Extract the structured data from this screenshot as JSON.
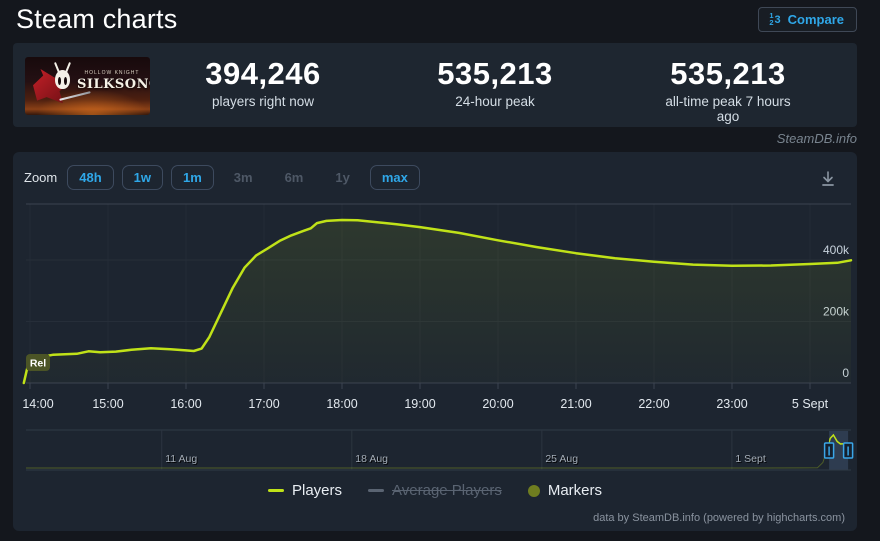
{
  "header": {
    "title": "Steam charts",
    "compare_label": "Compare"
  },
  "game": {
    "title_top": "HOLLOW KNIGHT",
    "title_main": "SILKSONG"
  },
  "stats": [
    {
      "value": "394,246",
      "label": "players right now"
    },
    {
      "value": "535,213",
      "label": "24-hour peak"
    },
    {
      "value": "535,213",
      "label": "all-time peak 7 hours ago"
    }
  ],
  "watermark": "SteamDB.info",
  "toolbar": {
    "zoom_label": "Zoom",
    "ranges": [
      {
        "label": "48h",
        "enabled": true
      },
      {
        "label": "1w",
        "enabled": true
      },
      {
        "label": "1m",
        "enabled": true
      },
      {
        "label": "3m",
        "enabled": false
      },
      {
        "label": "6m",
        "enabled": false
      },
      {
        "label": "1y",
        "enabled": false
      },
      {
        "label": "max",
        "enabled": true
      }
    ]
  },
  "chart_data": {
    "type": "line",
    "title": "",
    "ylabel": "",
    "xlabel": "",
    "ylim": [
      0,
      582000
    ],
    "grid": true,
    "legend_position": "bottom",
    "series": [
      {
        "name": "Players",
        "color": "#c0e218",
        "points": [
          [
            13.92,
            0
          ],
          [
            13.97,
            55000
          ],
          [
            14.05,
            80000
          ],
          [
            14.3,
            92000
          ],
          [
            14.6,
            95000
          ],
          [
            14.75,
            103000
          ],
          [
            14.9,
            100000
          ],
          [
            15.1,
            102000
          ],
          [
            15.3,
            108000
          ],
          [
            15.55,
            113000
          ],
          [
            15.8,
            110000
          ],
          [
            16.0,
            106000
          ],
          [
            16.1,
            104000
          ],
          [
            16.2,
            112000
          ],
          [
            16.3,
            150000
          ],
          [
            16.45,
            230000
          ],
          [
            16.6,
            310000
          ],
          [
            16.75,
            375000
          ],
          [
            16.9,
            415000
          ],
          [
            17.05,
            438000
          ],
          [
            17.2,
            462000
          ],
          [
            17.35,
            480000
          ],
          [
            17.5,
            494000
          ],
          [
            17.6,
            503000
          ],
          [
            17.68,
            520000
          ],
          [
            17.8,
            527000
          ],
          [
            18.0,
            530000
          ],
          [
            18.2,
            529000
          ],
          [
            18.45,
            523000
          ],
          [
            18.7,
            516000
          ],
          [
            19.0,
            507000
          ],
          [
            19.5,
            488000
          ],
          [
            20.0,
            464000
          ],
          [
            20.5,
            442000
          ],
          [
            21.0,
            422000
          ],
          [
            21.5,
            406000
          ],
          [
            22.0,
            394000
          ],
          [
            22.5,
            385000
          ],
          [
            23.0,
            381000
          ],
          [
            23.5,
            382000
          ],
          [
            24.0,
            387000
          ],
          [
            24.35,
            391000
          ],
          [
            24.53,
            399000
          ]
        ]
      }
    ],
    "yaxis": {
      "ticks": [
        {
          "v": 0,
          "label": "0"
        },
        {
          "v": 200000,
          "label": "200k"
        },
        {
          "v": 400000,
          "label": "400k"
        }
      ]
    },
    "xaxis": {
      "ticks": [
        {
          "t": 14,
          "label": "14:00"
        },
        {
          "t": 15,
          "label": "15:00"
        },
        {
          "t": 16,
          "label": "16:00"
        },
        {
          "t": 17,
          "label": "17:00"
        },
        {
          "t": 18,
          "label": "18:00"
        },
        {
          "t": 19,
          "label": "19:00"
        },
        {
          "t": 20,
          "label": "20:00"
        },
        {
          "t": 21,
          "label": "21:00"
        },
        {
          "t": 22,
          "label": "22:00"
        },
        {
          "t": 23,
          "label": "23:00"
        },
        {
          "t": 24,
          "label": "5 Sept"
        }
      ]
    },
    "flag": {
      "label": "Rel"
    },
    "navigator": {
      "ticks": [
        {
          "d": 5,
          "label": "11 Aug"
        },
        {
          "d": 12,
          "label": "18 Aug"
        },
        {
          "d": 19,
          "label": "25 Aug"
        },
        {
          "d": 26,
          "label": "1 Sept"
        }
      ],
      "points": [
        [
          0,
          0
        ],
        [
          20,
          500
        ],
        [
          26,
          800
        ],
        [
          28.6,
          1500
        ],
        [
          29.15,
          4000
        ],
        [
          29.35,
          90000
        ],
        [
          29.5,
          300000
        ],
        [
          29.62,
          480000
        ],
        [
          29.74,
          535213
        ],
        [
          29.88,
          430000
        ],
        [
          30.0,
          390000
        ],
        [
          30.28,
          399000
        ]
      ],
      "selected": {
        "from_day": 29.58,
        "to_day": 30.28
      }
    },
    "legend": [
      {
        "label": "Players",
        "type": "line",
        "color": "#c0e218",
        "active": true
      },
      {
        "label": "Average Players",
        "type": "line",
        "color": "#5a6472",
        "active": false
      },
      {
        "label": "Markers",
        "type": "circle",
        "color": "#6f7d20",
        "active": true
      }
    ],
    "credits": "data by SteamDB.info (powered by highcharts.com)"
  }
}
